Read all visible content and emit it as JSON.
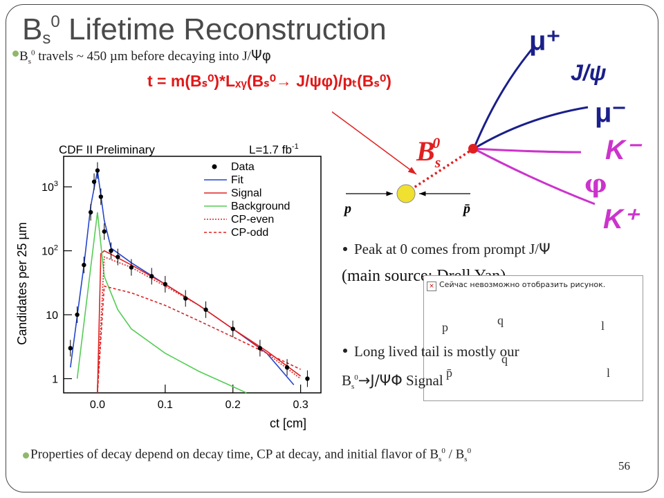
{
  "title": {
    "main": "B",
    "sub": "s",
    "sup": "0",
    "rest": " Lifetime Reconstruction"
  },
  "line1": {
    "prefix": "B",
    "sub": "s",
    "sup": "0",
    "text": " travels ~ 450 µm before decaying into  J/",
    "psi": "Ψ",
    "phi": "φ"
  },
  "formula": "t = m(Bₛ⁰)*Lₓᵧ(Bₛ⁰→ J/ψφ)/pₜ(Bₛ⁰)",
  "diagram": {
    "mu_plus": "μ⁺",
    "jpsi": "J/ψ",
    "mu_minus": "μ⁻",
    "bs": "B",
    "bs_sub": "s",
    "bs_sup": "0",
    "k_minus": "K⁻",
    "phi": "φ",
    "k_plus": "K⁺",
    "p": "p",
    "pbar": "p̄"
  },
  "bullet1": {
    "text": "Peak at 0 comes from prompt J/",
    "psi": "Ψ",
    "cont": "(main source: Drell Yan)"
  },
  "bullet2": {
    "text": "Long lived tail is mostly our",
    "b": "B",
    "sub": "s",
    "sup": "0",
    "arrow": "→J/",
    "psi": "ΨΦ",
    "signal": " Signal"
  },
  "broken_image": {
    "alt": "Сейчас невозможно отобразить рисунок.",
    "labels": [
      "p",
      "q",
      "l",
      "q",
      "p̄",
      "l"
    ]
  },
  "footer": {
    "text": "Properties of decay depend on decay time, CP at decay, and initial flavor of B",
    "sub": "s",
    "sup": "0",
    "mid": " / B",
    "sub2": "s",
    "sup2": "0"
  },
  "page_number": "56",
  "plot": {
    "header_left": "CDF II Preliminary",
    "header_right": "L=1.7 fb",
    "header_right_sup": "-1",
    "ylabel": "Candidates per 25 µm",
    "xlabel": "ct [cm]",
    "xticks": [
      "0.0",
      "0.1",
      "0.2",
      "0.3"
    ],
    "yticks": [
      "1",
      "10",
      "10",
      "10"
    ],
    "ytick_sups": [
      "",
      "",
      "2",
      "3"
    ],
    "legend": [
      "Data",
      "Fit",
      "Signal",
      "Background",
      "CP-even",
      "CP-odd"
    ]
  },
  "chart_data": {
    "type": "scatter",
    "title": "CDF II Preliminary",
    "annotation": "L=1.7 fb-1",
    "xlabel": "ct [cm]",
    "ylabel": "Candidates per 25 µm",
    "yscale": "log",
    "xlim": [
      -0.05,
      0.33
    ],
    "ylim": [
      0.6,
      3000
    ],
    "series": [
      {
        "name": "Data",
        "x": [
          -0.04,
          -0.03,
          -0.02,
          -0.01,
          -0.005,
          0.0,
          0.005,
          0.01,
          0.02,
          0.03,
          0.05,
          0.08,
          0.1,
          0.13,
          0.16,
          0.2,
          0.24,
          0.28,
          0.31
        ],
        "y": [
          3,
          10,
          60,
          400,
          1200,
          1800,
          700,
          200,
          100,
          80,
          55,
          40,
          30,
          18,
          12,
          6,
          3,
          1.5,
          1
        ]
      },
      {
        "name": "Fit",
        "x": [
          -0.04,
          -0.02,
          -0.01,
          0.0,
          0.01,
          0.02,
          0.05,
          0.1,
          0.15,
          0.2,
          0.25,
          0.29
        ],
        "y": [
          1.5,
          60,
          500,
          1800,
          300,
          110,
          65,
          30,
          14,
          6,
          2.5,
          0.8
        ]
      },
      {
        "name": "Signal",
        "x": [
          0.0,
          0.005,
          0.01,
          0.05,
          0.1,
          0.15,
          0.2,
          0.25,
          0.3
        ],
        "y": [
          0.6,
          90,
          100,
          60,
          30,
          14,
          6,
          2.7,
          1.1
        ]
      },
      {
        "name": "Background",
        "x": [
          -0.03,
          0.0,
          0.01,
          0.03,
          0.05,
          0.1,
          0.15,
          0.2,
          0.22
        ],
        "y": [
          1,
          400,
          40,
          12,
          6,
          2.5,
          1.3,
          0.75,
          0.6
        ]
      },
      {
        "name": "CP-even",
        "x": [
          0.0,
          0.01,
          0.05,
          0.1,
          0.15,
          0.2,
          0.25,
          0.3
        ],
        "y": [
          0.6,
          80,
          55,
          28,
          14,
          6,
          2.5,
          1
        ]
      },
      {
        "name": "CP-odd",
        "x": [
          0.0,
          0.01,
          0.05,
          0.1,
          0.15,
          0.2,
          0.25,
          0.3
        ],
        "y": [
          0.6,
          28,
          22,
          14,
          8,
          4.5,
          2.5,
          1.4
        ]
      }
    ],
    "colors": {
      "Data": "#000000",
      "Fit": "#2244cc",
      "Signal": "#e02020",
      "Background": "#55cc55",
      "CP-even": "#e02020",
      "CP-odd": "#e02020"
    }
  }
}
